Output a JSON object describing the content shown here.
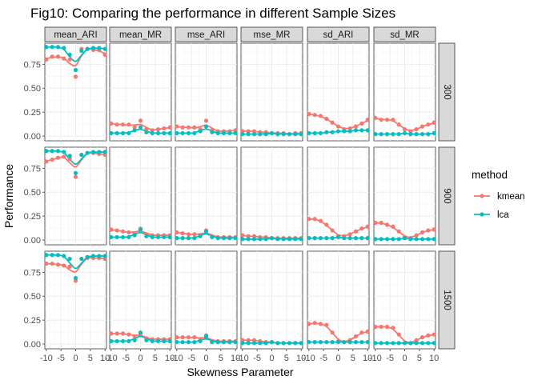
{
  "chart_data": {
    "type": "scatter",
    "title": "Fig10: Comparing the performance in different Sample Sizes",
    "xlabel": "Skewness Parameter",
    "ylabel": "Performance",
    "x": [
      -10,
      -8,
      -6,
      -4,
      -2,
      0,
      2,
      4,
      6,
      8,
      10
    ],
    "x_ticks": [
      "-10",
      "-5",
      "0",
      "5",
      "10"
    ],
    "x_tick_values": [
      -10,
      -5,
      0,
      5,
      10
    ],
    "xlim": [
      -10.5,
      10.5
    ],
    "ylim": [
      -0.05,
      0.97
    ],
    "y_ticks": [
      "0.00",
      "0.25",
      "0.50",
      "0.75"
    ],
    "y_tick_values": [
      0,
      0.25,
      0.5,
      0.75
    ],
    "grid": true,
    "legend_position": "right",
    "smooth_lines": true,
    "columns": [
      "mean_ARI",
      "mean_MR",
      "mse_ARI",
      "mse_MR",
      "sd_ARI",
      "sd_MR"
    ],
    "rows": [
      "300",
      "900",
      "1500"
    ],
    "legend": {
      "title": "method",
      "entries": [
        {
          "label": "kmean",
          "color": "#F8766D"
        },
        {
          "label": "lca",
          "color": "#00BFC4"
        }
      ]
    },
    "panels": [
      {
        "row": "300",
        "col": "mean_ARI",
        "kmean": [
          0.8,
          0.83,
          0.83,
          0.81,
          0.8,
          0.62,
          0.91,
          0.91,
          0.9,
          0.9,
          0.85
        ],
        "lca": [
          0.93,
          0.93,
          0.93,
          0.92,
          0.85,
          0.69,
          0.89,
          0.91,
          0.92,
          0.92,
          0.91
        ]
      },
      {
        "row": "300",
        "col": "mean_MR",
        "kmean": [
          0.13,
          0.12,
          0.12,
          0.12,
          0.09,
          0.16,
          0.07,
          0.06,
          0.07,
          0.08,
          0.09
        ],
        "lca": [
          0.03,
          0.03,
          0.03,
          0.03,
          0.06,
          0.09,
          0.04,
          0.03,
          0.03,
          0.03,
          0.03
        ]
      },
      {
        "row": "300",
        "col": "mse_ARI",
        "kmean": [
          0.1,
          0.09,
          0.09,
          0.09,
          0.07,
          0.16,
          0.06,
          0.05,
          0.05,
          0.05,
          0.06
        ],
        "lca": [
          0.03,
          0.03,
          0.03,
          0.03,
          0.05,
          0.1,
          0.04,
          0.03,
          0.03,
          0.03,
          0.03
        ]
      },
      {
        "row": "300",
        "col": "mse_MR",
        "kmean": [
          0.05,
          0.05,
          0.05,
          0.04,
          0.04,
          0.03,
          0.03,
          0.03,
          0.02,
          0.03,
          0.03
        ],
        "lca": [
          0.02,
          0.02,
          0.02,
          0.02,
          0.02,
          0.03,
          0.02,
          0.02,
          0.02,
          0.02,
          0.02
        ]
      },
      {
        "row": "300",
        "col": "sd_ARI",
        "kmean": [
          0.23,
          0.22,
          0.21,
          0.18,
          0.14,
          0.1,
          0.07,
          0.08,
          0.1,
          0.13,
          0.17
        ],
        "lca": [
          0.03,
          0.03,
          0.03,
          0.04,
          0.04,
          0.05,
          0.05,
          0.05,
          0.06,
          0.06,
          0.06
        ]
      },
      {
        "row": "300",
        "col": "sd_MR",
        "kmean": [
          0.19,
          0.17,
          0.17,
          0.17,
          0.12,
          0.07,
          0.05,
          0.07,
          0.1,
          0.12,
          0.14
        ],
        "lca": [
          0.02,
          0.02,
          0.02,
          0.02,
          0.02,
          0.03,
          0.02,
          0.02,
          0.02,
          0.02,
          0.03
        ]
      },
      {
        "row": "900",
        "col": "mean_ARI",
        "kmean": [
          0.82,
          0.84,
          0.86,
          0.87,
          0.85,
          0.66,
          0.89,
          0.91,
          0.91,
          0.9,
          0.89
        ],
        "lca": [
          0.93,
          0.93,
          0.93,
          0.92,
          0.88,
          0.7,
          0.89,
          0.91,
          0.92,
          0.92,
          0.92
        ]
      },
      {
        "row": "900",
        "col": "mean_MR",
        "kmean": [
          0.11,
          0.1,
          0.09,
          0.08,
          0.07,
          0.12,
          0.06,
          0.05,
          0.05,
          0.05,
          0.05
        ],
        "lca": [
          0.03,
          0.03,
          0.03,
          0.03,
          0.05,
          0.11,
          0.04,
          0.03,
          0.03,
          0.03,
          0.03
        ]
      },
      {
        "row": "900",
        "col": "mse_ARI",
        "kmean": [
          0.08,
          0.07,
          0.06,
          0.06,
          0.05,
          0.1,
          0.04,
          0.03,
          0.03,
          0.03,
          0.03
        ],
        "lca": [
          0.02,
          0.02,
          0.02,
          0.02,
          0.04,
          0.09,
          0.03,
          0.02,
          0.02,
          0.02,
          0.02
        ]
      },
      {
        "row": "900",
        "col": "mse_MR",
        "kmean": [
          0.05,
          0.04,
          0.04,
          0.03,
          0.03,
          0.02,
          0.02,
          0.02,
          0.02,
          0.02,
          0.02
        ],
        "lca": [
          0.01,
          0.01,
          0.01,
          0.01,
          0.01,
          0.02,
          0.01,
          0.01,
          0.01,
          0.01,
          0.01
        ]
      },
      {
        "row": "900",
        "col": "sd_ARI",
        "kmean": [
          0.22,
          0.22,
          0.2,
          0.16,
          0.1,
          0.04,
          0.04,
          0.06,
          0.09,
          0.12,
          0.14
        ],
        "lca": [
          0.02,
          0.02,
          0.02,
          0.02,
          0.02,
          0.03,
          0.02,
          0.02,
          0.02,
          0.02,
          0.02
        ]
      },
      {
        "row": "900",
        "col": "sd_MR",
        "kmean": [
          0.18,
          0.18,
          0.16,
          0.14,
          0.09,
          0.03,
          0.02,
          0.05,
          0.08,
          0.1,
          0.11
        ],
        "lca": [
          0.01,
          0.01,
          0.01,
          0.01,
          0.01,
          0.02,
          0.01,
          0.01,
          0.01,
          0.01,
          0.01
        ]
      },
      {
        "row": "1500",
        "col": "mean_ARI",
        "kmean": [
          0.84,
          0.84,
          0.83,
          0.82,
          0.81,
          0.66,
          0.89,
          0.9,
          0.9,
          0.9,
          0.89
        ],
        "lca": [
          0.93,
          0.93,
          0.93,
          0.92,
          0.89,
          0.69,
          0.89,
          0.91,
          0.92,
          0.92,
          0.92
        ]
      },
      {
        "row": "1500",
        "col": "mean_MR",
        "kmean": [
          0.11,
          0.11,
          0.11,
          0.1,
          0.08,
          0.11,
          0.06,
          0.05,
          0.05,
          0.05,
          0.05
        ],
        "lca": [
          0.03,
          0.03,
          0.03,
          0.03,
          0.04,
          0.12,
          0.04,
          0.03,
          0.03,
          0.03,
          0.03
        ]
      },
      {
        "row": "1500",
        "col": "mse_ARI",
        "kmean": [
          0.07,
          0.07,
          0.07,
          0.07,
          0.05,
          0.09,
          0.03,
          0.03,
          0.03,
          0.03,
          0.03
        ],
        "lca": [
          0.02,
          0.02,
          0.02,
          0.02,
          0.03,
          0.08,
          0.02,
          0.02,
          0.02,
          0.02,
          0.02
        ]
      },
      {
        "row": "1500",
        "col": "mse_MR",
        "kmean": [
          0.04,
          0.04,
          0.04,
          0.03,
          0.02,
          0.02,
          0.01,
          0.01,
          0.01,
          0.01,
          0.01
        ],
        "lca": [
          0.01,
          0.01,
          0.01,
          0.01,
          0.01,
          0.02,
          0.01,
          0.01,
          0.01,
          0.01,
          0.01
        ]
      },
      {
        "row": "1500",
        "col": "sd_ARI",
        "kmean": [
          0.21,
          0.22,
          0.21,
          0.2,
          0.12,
          0.03,
          0.02,
          0.04,
          0.08,
          0.12,
          0.13
        ],
        "lca": [
          0.02,
          0.02,
          0.02,
          0.02,
          0.02,
          0.02,
          0.02,
          0.02,
          0.02,
          0.02,
          0.02
        ]
      },
      {
        "row": "1500",
        "col": "sd_MR",
        "kmean": [
          0.18,
          0.18,
          0.18,
          0.17,
          0.1,
          0.01,
          0.01,
          0.04,
          0.07,
          0.09,
          0.1
        ],
        "lca": [
          0.01,
          0.01,
          0.01,
          0.01,
          0.01,
          0.01,
          0.01,
          0.01,
          0.01,
          0.01,
          0.01
        ]
      }
    ]
  }
}
